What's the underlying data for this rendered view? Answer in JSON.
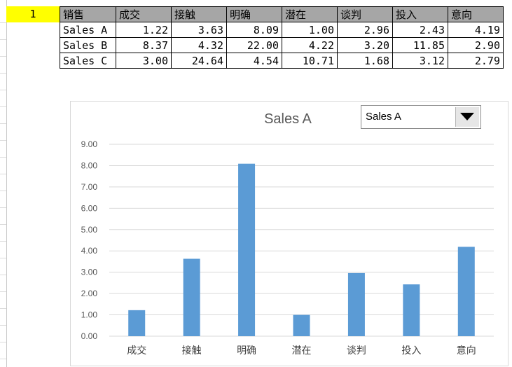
{
  "sheet": {
    "cell_a1": "1",
    "headers": [
      "销售",
      "成交",
      "接触",
      "明确",
      "潜在",
      "谈判",
      "投入",
      "意向"
    ],
    "rows": [
      {
        "name": "Sales A",
        "values": [
          "1.22",
          "3.63",
          "8.09",
          "1.00",
          "2.96",
          "2.43",
          "4.19"
        ]
      },
      {
        "name": "Sales B",
        "values": [
          "8.37",
          "4.32",
          "22.00",
          "4.22",
          "3.20",
          "11.85",
          "2.90"
        ]
      },
      {
        "name": "Sales C",
        "values": [
          "3.00",
          "24.64",
          "4.54",
          "10.71",
          "1.68",
          "3.12",
          "2.79"
        ]
      }
    ]
  },
  "dropdown": {
    "selected": "Sales A"
  },
  "colors": {
    "bar": "#5b9bd5",
    "header_fill": "#a6a6a6",
    "highlight": "#ffff00"
  },
  "chart_data": {
    "type": "bar",
    "title": "Sales A",
    "categories": [
      "成交",
      "接触",
      "明确",
      "潜在",
      "谈判",
      "投入",
      "意向"
    ],
    "values": [
      1.22,
      3.63,
      8.09,
      1.0,
      2.96,
      2.43,
      4.19
    ],
    "ylim": [
      0,
      9
    ],
    "yticks": [
      "0.00",
      "1.00",
      "2.00",
      "3.00",
      "4.00",
      "5.00",
      "6.00",
      "7.00",
      "8.00",
      "9.00"
    ],
    "grid": true,
    "xlabel": "",
    "ylabel": ""
  }
}
